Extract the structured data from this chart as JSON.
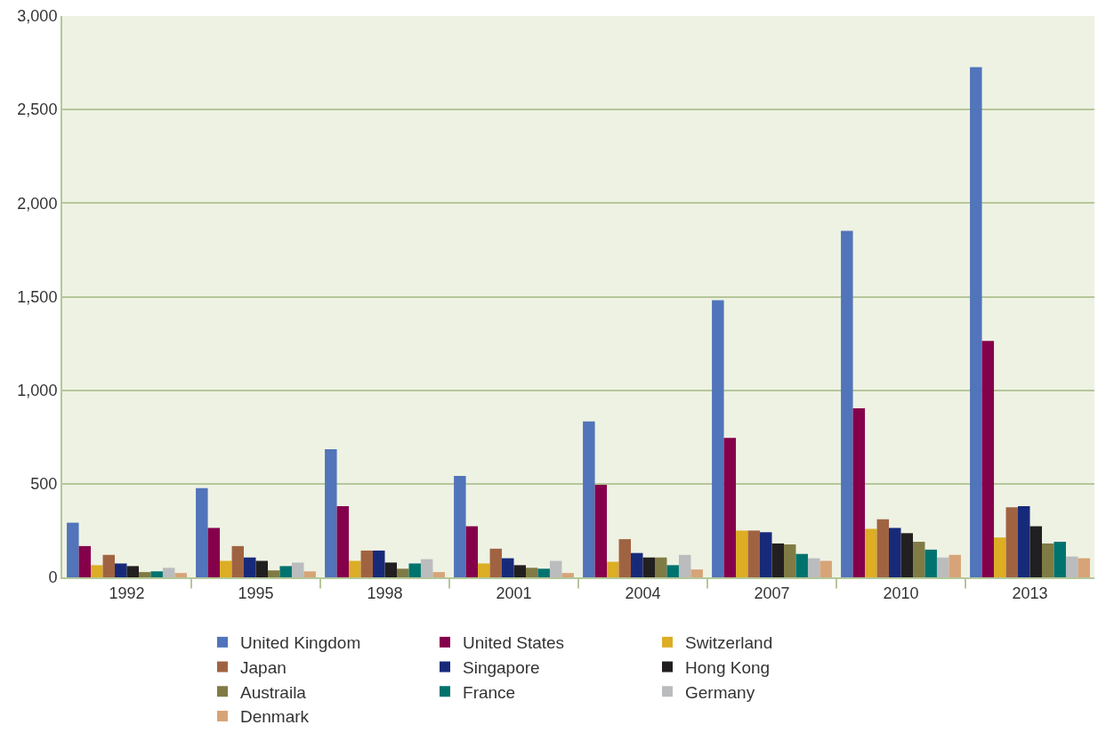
{
  "chart_data": {
    "type": "bar",
    "categories": [
      "1992",
      "1995",
      "1998",
      "2001",
      "2004",
      "2007",
      "2010",
      "2013"
    ],
    "ylim": [
      0,
      3000
    ],
    "yticks": [
      {
        "value": 0,
        "label": "0"
      },
      {
        "value": 500,
        "label": "500"
      },
      {
        "value": 1000,
        "label": "1,000"
      },
      {
        "value": 1500,
        "label": "1,500"
      },
      {
        "value": 2000,
        "label": "2,000"
      },
      {
        "value": 2500,
        "label": "2,500"
      },
      {
        "value": 3000,
        "label": "3,000"
      }
    ],
    "grid": "y",
    "legend": "bottom",
    "series": [
      {
        "name": "United Kingdom",
        "color": "#5174ba",
        "values": [
          292,
          477,
          685,
          542,
          833,
          1481,
          1852,
          2727
        ]
      },
      {
        "name": "United States",
        "color": "#85004b",
        "values": [
          167,
          264,
          380,
          273,
          495,
          745,
          903,
          1264
        ]
      },
      {
        "name": "Switzerland",
        "color": "#dcad25",
        "values": [
          65,
          88,
          88,
          74,
          83,
          250,
          259,
          213
        ]
      },
      {
        "name": "Japan",
        "color": "#a06342",
        "values": [
          120,
          167,
          143,
          153,
          204,
          250,
          310,
          375
        ]
      },
      {
        "name": "Singapore",
        "color": "#172a7a",
        "values": [
          74,
          106,
          143,
          102,
          130,
          241,
          264,
          380
        ]
      },
      {
        "name": "Hong Kong",
        "color": "#221f20",
        "values": [
          60,
          88,
          79,
          65,
          106,
          181,
          236,
          273
        ]
      },
      {
        "name": "Austraila",
        "color": "#807b45",
        "values": [
          28,
          37,
          46,
          51,
          106,
          176,
          190,
          181
        ]
      },
      {
        "name": "France",
        "color": "#00736e",
        "values": [
          32,
          60,
          74,
          46,
          65,
          125,
          148,
          190
        ]
      },
      {
        "name": "Germany",
        "color": "#bbbcbe",
        "values": [
          51,
          79,
          97,
          88,
          120,
          102,
          106,
          111
        ]
      },
      {
        "name": "Denmark",
        "color": "#d7a478",
        "values": [
          23,
          32,
          28,
          23,
          42,
          88,
          120,
          102
        ]
      }
    ]
  }
}
